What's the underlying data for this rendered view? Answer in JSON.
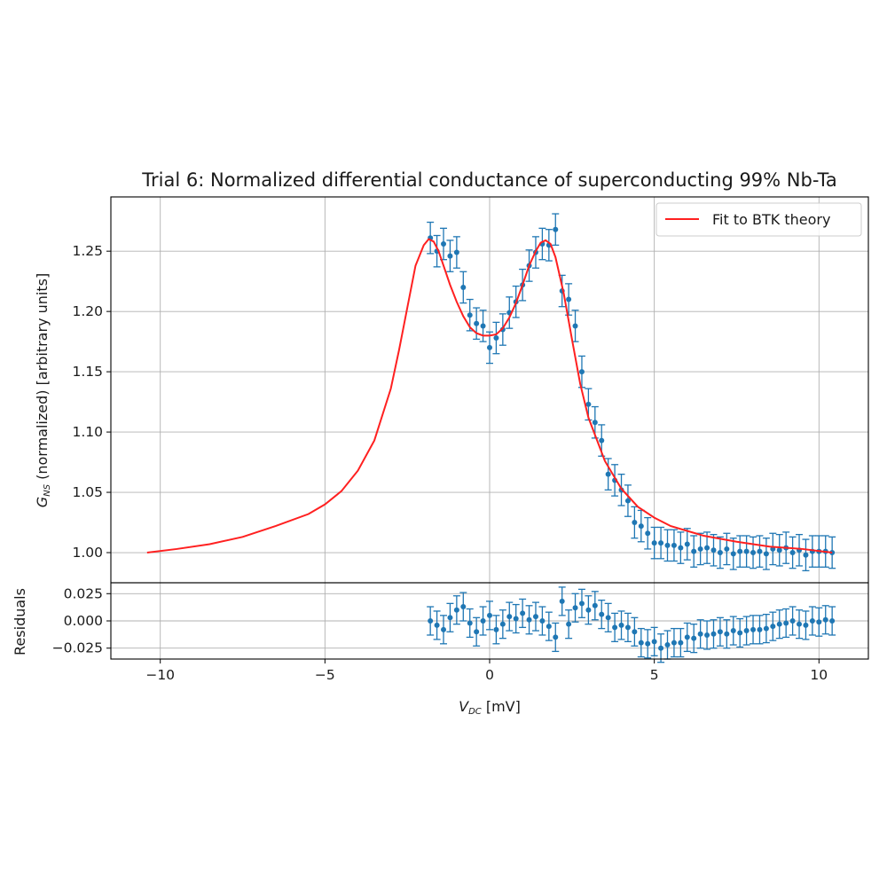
{
  "chart_data": {
    "type": "scatter",
    "title": "Trial 6: Normalized differential conductance of superconducting 99% Nb-Ta",
    "xlabel": {
      "sym": "V",
      "sub": "DC",
      "unit": " [mV]"
    },
    "ylabel": {
      "sym": "G",
      "sub": "NS",
      "rest": " (normalized) [arbitrary units]"
    },
    "residuals_ylabel": "Residuals",
    "xlim": [
      -11.5,
      11.5
    ],
    "ylim": [
      0.975,
      1.295
    ],
    "residuals_ylim": [
      -0.035,
      0.035
    ],
    "xticks": [
      -10,
      -5,
      0,
      5,
      10
    ],
    "xtick_labels": [
      "−10",
      "−5",
      "0",
      "5",
      "10"
    ],
    "yticks": [
      1.0,
      1.05,
      1.1,
      1.15,
      1.2,
      1.25
    ],
    "ytick_labels": [
      "1.00",
      "1.05",
      "1.10",
      "1.15",
      "1.20",
      "1.25"
    ],
    "residuals_yticks": [
      -0.025,
      0.0,
      0.025
    ],
    "residuals_ytick_labels": [
      "−0.025",
      "0.000",
      "0.025"
    ],
    "grid": true,
    "legend": {
      "position": "top-right",
      "entries": [
        "Fit to BTK theory"
      ]
    },
    "colors": {
      "fit": "#ff2020",
      "data": "#1f77b4"
    },
    "fit": {
      "name": "Fit to BTK theory",
      "x": [
        -10.4,
        -9.5,
        -8.5,
        -7.5,
        -6.5,
        -5.5,
        -5.0,
        -4.5,
        -4.0,
        -3.5,
        -3.0,
        -2.75,
        -2.5,
        -2.25,
        -2.0,
        -1.85,
        -1.7,
        -1.55,
        -1.4,
        -1.2,
        -1.0,
        -0.8,
        -0.6,
        -0.4,
        -0.2,
        0.0,
        0.2,
        0.4,
        0.6,
        0.8,
        1.0,
        1.2,
        1.4,
        1.55,
        1.7,
        1.85,
        2.0,
        2.25,
        2.5,
        2.75,
        3.0,
        3.5,
        4.0,
        4.5,
        5.0,
        5.5,
        6.5,
        7.5,
        8.5,
        9.5,
        10.4
      ],
      "y": [
        1.0,
        1.003,
        1.007,
        1.013,
        1.022,
        1.032,
        1.04,
        1.051,
        1.068,
        1.093,
        1.136,
        1.168,
        1.203,
        1.238,
        1.255,
        1.26,
        1.258,
        1.25,
        1.238,
        1.222,
        1.208,
        1.196,
        1.187,
        1.182,
        1.18,
        1.18,
        1.181,
        1.186,
        1.195,
        1.207,
        1.222,
        1.238,
        1.25,
        1.257,
        1.259,
        1.256,
        1.245,
        1.215,
        1.177,
        1.14,
        1.112,
        1.076,
        1.053,
        1.038,
        1.029,
        1.022,
        1.014,
        1.009,
        1.005,
        1.003,
        1.0
      ]
    },
    "data": {
      "x": [
        -1.8,
        -1.6,
        -1.4,
        -1.2,
        -1.0,
        -0.8,
        -0.6,
        -0.4,
        -0.2,
        0.0,
        0.2,
        0.4,
        0.6,
        0.8,
        1.0,
        1.2,
        1.4,
        1.6,
        1.8,
        2.0,
        2.2,
        2.4,
        2.6,
        2.8,
        3.0,
        3.2,
        3.4,
        3.6,
        3.8,
        4.0,
        4.2,
        4.4,
        4.6,
        4.8,
        5.0,
        5.2,
        5.4,
        5.6,
        5.8,
        6.0,
        6.2,
        6.4,
        6.6,
        6.8,
        7.0,
        7.2,
        7.4,
        7.6,
        7.8,
        8.0,
        8.2,
        8.4,
        8.6,
        8.8,
        9.0,
        9.2,
        9.4,
        9.6,
        9.8,
        10.0,
        10.2,
        10.4
      ],
      "y": [
        1.261,
        1.25,
        1.256,
        1.246,
        1.249,
        1.22,
        1.197,
        1.19,
        1.188,
        1.17,
        1.178,
        1.185,
        1.199,
        1.208,
        1.222,
        1.238,
        1.249,
        1.256,
        1.255,
        1.268,
        1.217,
        1.21,
        1.188,
        1.15,
        1.123,
        1.108,
        1.093,
        1.065,
        1.06,
        1.052,
        1.043,
        1.025,
        1.022,
        1.016,
        1.008,
        1.008,
        1.006,
        1.006,
        1.004,
        1.007,
        1.001,
        1.003,
        1.004,
        1.002,
        1.0,
        1.003,
        0.999,
        1.001,
        1.001,
        1.0,
        1.001,
        0.999,
        1.003,
        1.002,
        1.004,
        1.0,
        1.002,
        0.998,
        1.001,
        1.001,
        1.001,
        1.0
      ],
      "yerr": 0.013
    },
    "residuals": {
      "x": [
        -1.8,
        -1.6,
        -1.4,
        -1.2,
        -1.0,
        -0.8,
        -0.6,
        -0.4,
        -0.2,
        0.0,
        0.2,
        0.4,
        0.6,
        0.8,
        1.0,
        1.2,
        1.4,
        1.6,
        1.8,
        2.0,
        2.2,
        2.4,
        2.6,
        2.8,
        3.0,
        3.2,
        3.4,
        3.6,
        3.8,
        4.0,
        4.2,
        4.4,
        4.6,
        4.8,
        5.0,
        5.2,
        5.4,
        5.6,
        5.8,
        6.0,
        6.2,
        6.4,
        6.6,
        6.8,
        7.0,
        7.2,
        7.4,
        7.6,
        7.8,
        8.0,
        8.2,
        8.4,
        8.6,
        8.8,
        9.0,
        9.2,
        9.4,
        9.6,
        9.8,
        10.0,
        10.2,
        10.4
      ],
      "y": [
        0.0,
        -0.004,
        -0.008,
        0.003,
        0.01,
        0.013,
        -0.002,
        -0.01,
        0.0,
        0.005,
        -0.008,
        -0.003,
        0.004,
        0.002,
        0.007,
        0.001,
        0.004,
        0.0,
        -0.005,
        -0.015,
        0.018,
        -0.003,
        0.012,
        0.016,
        0.01,
        0.014,
        0.006,
        0.003,
        -0.006,
        -0.004,
        -0.006,
        -0.01,
        -0.02,
        -0.021,
        -0.019,
        -0.025,
        -0.022,
        -0.02,
        -0.02,
        -0.015,
        -0.016,
        -0.012,
        -0.013,
        -0.012,
        -0.01,
        -0.012,
        -0.009,
        -0.011,
        -0.009,
        -0.008,
        -0.008,
        -0.007,
        -0.005,
        -0.003,
        -0.002,
        0.0,
        -0.003,
        -0.004,
        0.0,
        -0.001,
        0.001,
        0.0
      ],
      "yerr": 0.013
    }
  }
}
